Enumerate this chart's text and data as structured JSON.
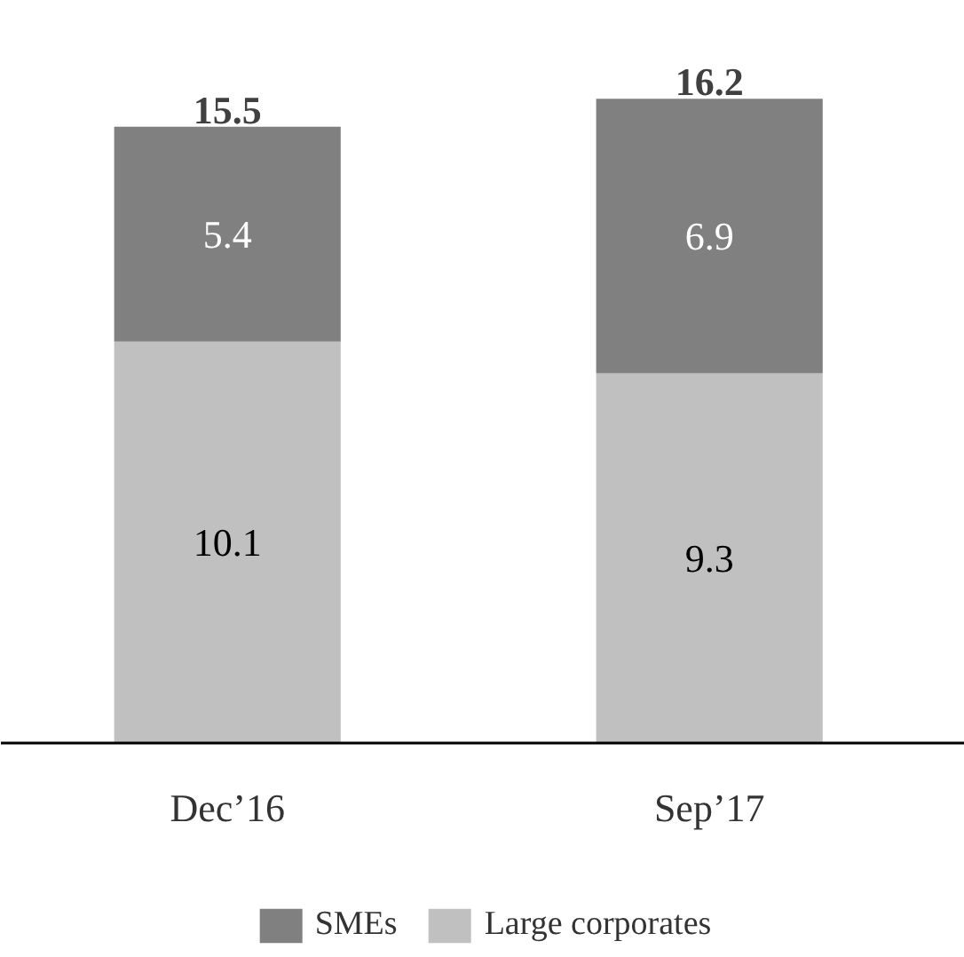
{
  "chart_data": {
    "type": "bar",
    "stacked": true,
    "categories": [
      "Dec’16",
      "Sep’17"
    ],
    "series": [
      {
        "name": "Large corporates",
        "color": "#c0c0c0",
        "values": [
          10.1,
          9.3
        ]
      },
      {
        "name": "SMEs",
        "color": "#808080",
        "values": [
          5.4,
          6.9
        ]
      }
    ],
    "data_labels": true,
    "totals": [
      "15.5",
      "16.2"
    ],
    "legend": "bottom",
    "grid": false
  }
}
